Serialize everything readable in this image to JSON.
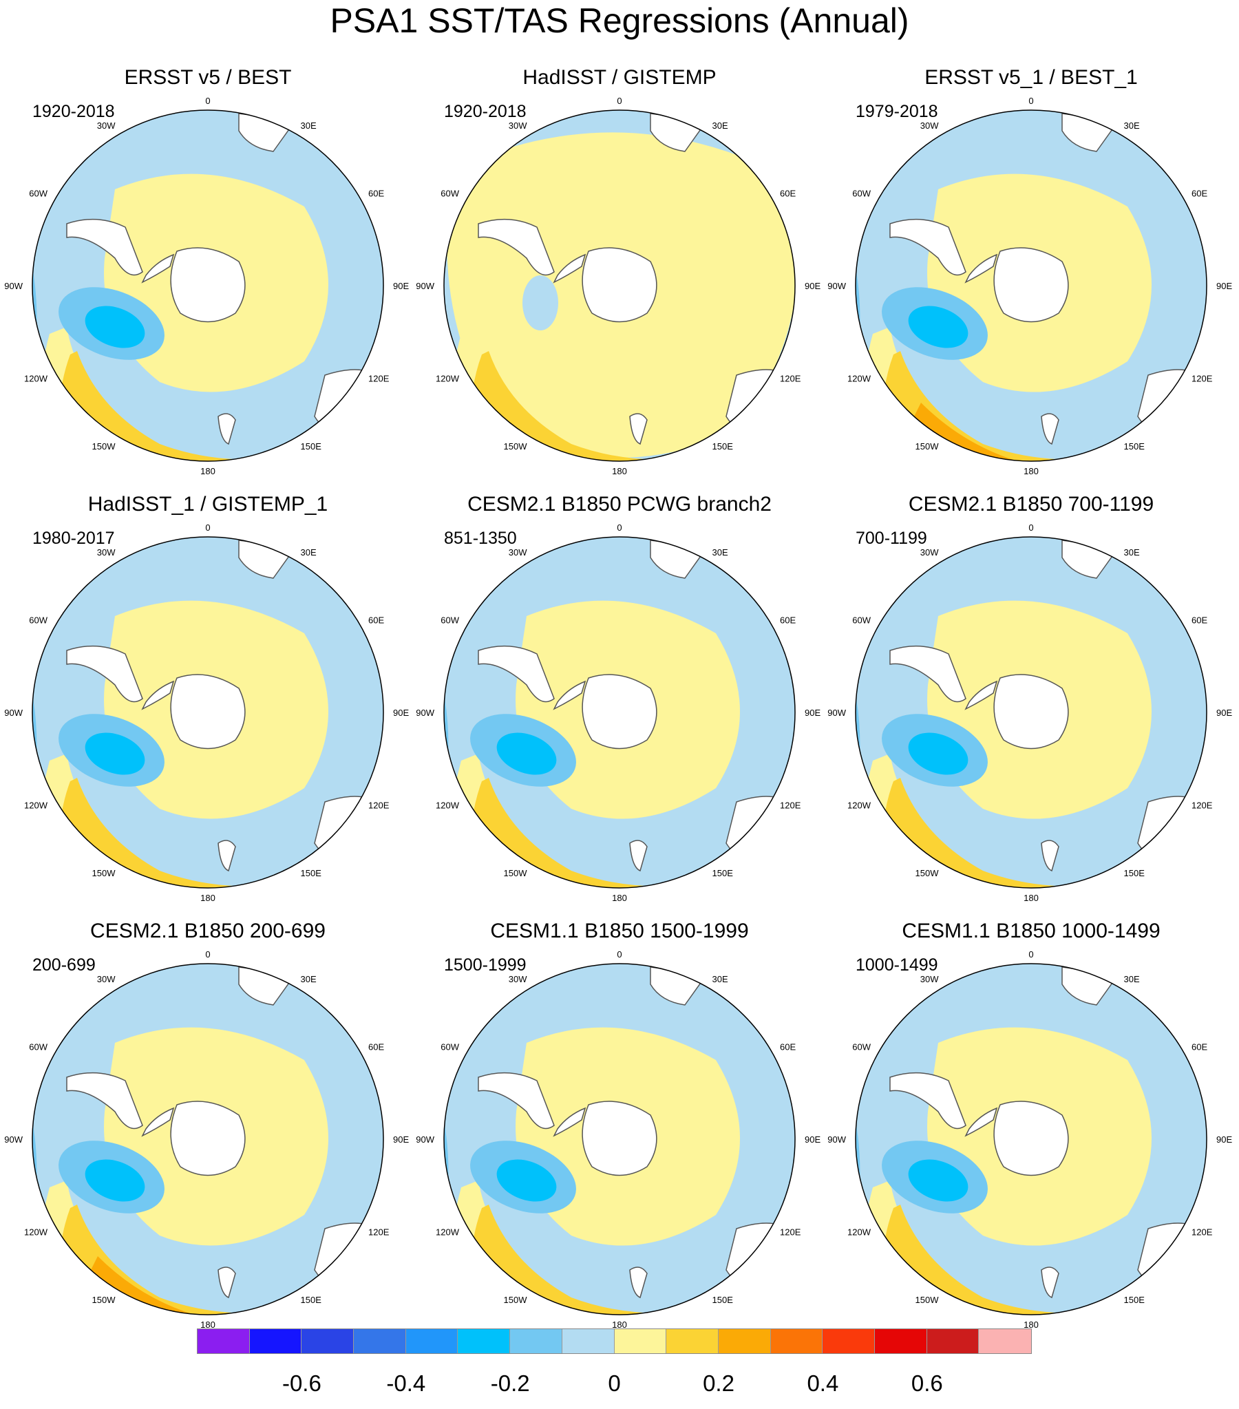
{
  "title": "PSA1 SST/TAS Regressions (Annual)",
  "longitude_labels": [
    "0",
    "30E",
    "60E",
    "90E",
    "120E",
    "150E",
    "180",
    "150W",
    "120W",
    "90W",
    "60W",
    "30W"
  ],
  "colors": {
    "ocean_light_blue": "#b3dcf2",
    "light_yellow": "#fdf59a",
    "yellow": "#fbd334",
    "orange": "#fbaa06",
    "land": "#ffffff",
    "coast": "#555555"
  },
  "panels": [
    {
      "title": "ERSST v5 / BEST",
      "years": "1920-2018"
    },
    {
      "title": "HadISST / GISTEMP",
      "years": "1920-2018"
    },
    {
      "title": "ERSST v5_1 / BEST_1",
      "years": "1979-2018"
    },
    {
      "title": "HadISST_1 / GISTEMP_1",
      "years": "1980-2017"
    },
    {
      "title": "CESM2.1 B1850 PCWG branch2",
      "years": "851-1350"
    },
    {
      "title": "CESM2.1 B1850 700-1199",
      "years": "700-1199"
    },
    {
      "title": "CESM2.1 B1850 200-699",
      "years": "200-699"
    },
    {
      "title": "CESM1.1 B1850 1500-1999",
      "years": "1500-1999"
    },
    {
      "title": "CESM1.1 B1850 1000-1499",
      "years": "1000-1499"
    }
  ],
  "colorbar": {
    "colors": [
      "#8b1ef0",
      "#1515ff",
      "#2a44e6",
      "#3476e9",
      "#2196fa",
      "#00c1fb",
      "#73c8f2",
      "#b3dcf2",
      "#fdf59a",
      "#fbd334",
      "#fbaa06",
      "#fb7407",
      "#fa3a0b",
      "#e50606",
      "#cc1c1c",
      "#fbb2b2"
    ],
    "labels": [
      "-0.6",
      "-0.4",
      "-0.2",
      "0",
      "0.2",
      "0.4",
      "0.6"
    ]
  }
}
